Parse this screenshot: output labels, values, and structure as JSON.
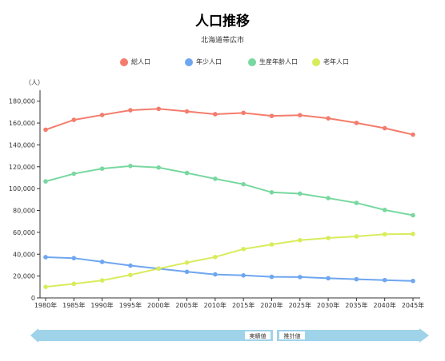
{
  "chart_data": {
    "type": "line",
    "title": "人口推移",
    "subtitle": "北海道帯広市",
    "ylabel": "（人）",
    "ylim": [
      0,
      190000
    ],
    "yticks": [
      0,
      20000,
      40000,
      60000,
      80000,
      100000,
      120000,
      140000,
      160000,
      180000
    ],
    "ytick_labels": [
      "0",
      "20,000",
      "40,000",
      "60,000",
      "80,000",
      "100,000",
      "120,000",
      "140,000",
      "160,000",
      "180,000"
    ],
    "x": [
      "1980年",
      "1985年",
      "1990年",
      "1995年",
      "2000年",
      "2005年",
      "2010年",
      "2015年",
      "2020年",
      "2025年",
      "2030年",
      "2035年",
      "2040年",
      "2045年"
    ],
    "grid": false,
    "legend_position": "top",
    "series": [
      {
        "name": "総人口",
        "color": "#f47c6c",
        "values": [
          153900,
          162900,
          167400,
          171700,
          173000,
          170600,
          168100,
          169300,
          166500,
          167200,
          164300,
          160100,
          155300,
          149400
        ]
      },
      {
        "name": "年少人口",
        "color": "#6ea6f0",
        "values": [
          37300,
          36400,
          33000,
          29600,
          26800,
          23900,
          21500,
          20600,
          19300,
          19100,
          18000,
          17100,
          16300,
          15500
        ]
      },
      {
        "name": "生産年齢人口",
        "color": "#78d8a0",
        "values": [
          106600,
          113600,
          118300,
          120700,
          119300,
          114300,
          109000,
          104000,
          96600,
          95400,
          91300,
          86900,
          80500,
          75600
        ]
      },
      {
        "name": "老年人口",
        "color": "#d8ec5c",
        "values": [
          10100,
          12900,
          16000,
          21000,
          26800,
          32300,
          37400,
          44700,
          48900,
          52800,
          54800,
          56300,
          58300,
          58500
        ]
      }
    ],
    "annotations": {
      "actual": "実績値",
      "projected": "推計値"
    }
  }
}
